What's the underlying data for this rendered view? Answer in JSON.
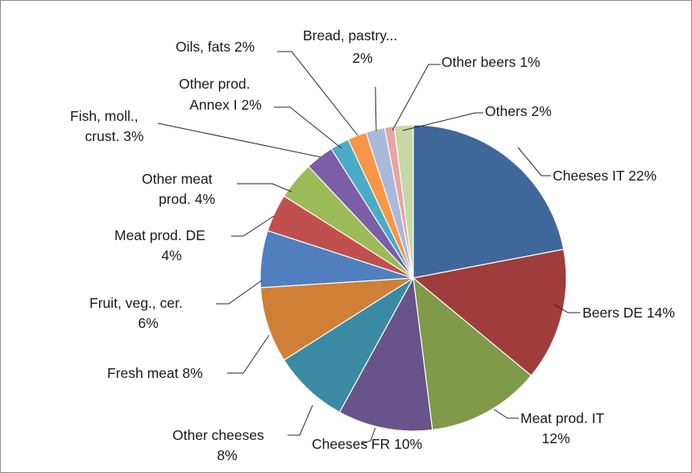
{
  "chart_data": {
    "type": "pie",
    "title": "",
    "slices": [
      {
        "label": "Cheeses IT",
        "percent_label": "22%",
        "value": 22,
        "color": "#3f679a"
      },
      {
        "label": "Beers DE",
        "percent_label": "14%",
        "value": 14,
        "color": "#9e3d3b"
      },
      {
        "label": "Meat prod. IT",
        "percent_label": "12%",
        "value": 12,
        "color": "#7f9a48"
      },
      {
        "label": "Cheeses FR",
        "percent_label": "10%",
        "value": 10,
        "color": "#68538a"
      },
      {
        "label": "Other cheeses",
        "percent_label": "8%",
        "value": 8,
        "color": "#3b8aa3"
      },
      {
        "label": "Fresh meat",
        "percent_label": "8%",
        "value": 8,
        "color": "#d07f36"
      },
      {
        "label": "Fruit, veg., cer.",
        "percent_label": "6%",
        "value": 6,
        "color": "#4f7fbf"
      },
      {
        "label": "Meat prod. DE",
        "percent_label": "4%",
        "value": 4,
        "color": "#c0504d"
      },
      {
        "label": "Other meat prod.",
        "percent_label": "4%",
        "value": 4,
        "color": "#9bbb59"
      },
      {
        "label": "Fish, moll., crust.",
        "percent_label": "3%",
        "value": 3,
        "color": "#7b5ea6"
      },
      {
        "label": "Other prod. Annex I",
        "percent_label": "2%",
        "value": 2,
        "color": "#4bacc6"
      },
      {
        "label": "Oils, fats",
        "percent_label": "2%",
        "value": 2,
        "color": "#f79646"
      },
      {
        "label": "Bread, pastry...",
        "percent_label": "2%",
        "value": 2,
        "color": "#aab9da"
      },
      {
        "label": "Other beers",
        "percent_label": "1%",
        "value": 1,
        "color": "#e6a5a3"
      },
      {
        "label": "Others",
        "percent_label": "2%",
        "value": 2,
        "color": "#c6d8a6"
      }
    ]
  },
  "labels": {
    "cheeses_it": "Cheeses IT 22%",
    "beers_de": "Beers DE 14%",
    "meat_prod_it_1": "Meat prod. IT",
    "meat_prod_it_2": "12%",
    "cheeses_fr": "Cheeses FR 10%",
    "other_cheeses_1": "Other cheeses",
    "other_cheeses_2": "8%",
    "fresh_meat": "Fresh meat 8%",
    "fruit_1": "Fruit, veg., cer.",
    "fruit_2": "6%",
    "meat_prod_de_1": "Meat prod. DE",
    "meat_prod_de_2": "4%",
    "other_meat_1": "Other meat",
    "other_meat_2": "prod. 4%",
    "fish_1": "Fish, moll.,",
    "fish_2": "crust. 3%",
    "other_prod_1": "Other prod.",
    "other_prod_2": "Annex I 2%",
    "oils": "Oils, fats 2%",
    "bread_1": "Bread, pastry...",
    "bread_2": "2%",
    "other_beers": "Other beers 1%",
    "others": "Others 2%"
  }
}
